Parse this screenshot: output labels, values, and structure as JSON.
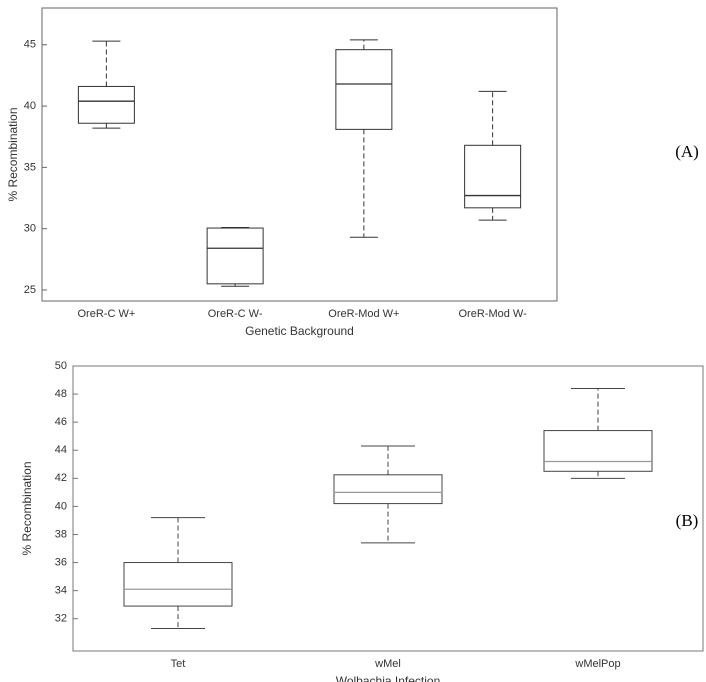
{
  "chart_data": [
    {
      "type": "box",
      "panel_label": "(A)",
      "xlabel": "Genetic Background",
      "ylabel": "% Recombination",
      "categories": [
        "OreR-C W+",
        "OreR-C W-",
        "OreR-Mod W+",
        "OreR-Mod W-"
      ],
      "min": [
        38.2,
        25.3,
        29.3,
        30.7
      ],
      "q1": [
        38.6,
        25.5,
        38.1,
        31.7
      ],
      "median": [
        40.4,
        28.4,
        41.8,
        32.7
      ],
      "q3": [
        41.6,
        30.05,
        44.6,
        36.8
      ],
      "max": [
        45.3,
        30.1,
        45.4,
        41.2
      ],
      "ylim": [
        24.1,
        48
      ],
      "yticks": [
        25,
        30,
        35,
        40,
        45
      ],
      "color": "#333333",
      "median_color": "#333333"
    },
    {
      "type": "box",
      "panel_label": "(B)",
      "xlabel": "Wolbachia Infection",
      "ylabel": "% Recombination",
      "categories": [
        "Tet",
        "wMel",
        "wMelPop"
      ],
      "min": [
        31.3,
        37.4,
        42.0
      ],
      "q1": [
        32.9,
        40.2,
        42.5
      ],
      "median": [
        34.1,
        41.0,
        43.2
      ],
      "q3": [
        36.0,
        42.25,
        45.4
      ],
      "max": [
        39.2,
        44.3,
        48.4
      ],
      "ylim": [
        29.7,
        50
      ],
      "yticks": [
        32,
        34,
        36,
        38,
        40,
        42,
        44,
        46,
        48,
        50
      ],
      "color": "#444444",
      "median_color": "#999999"
    }
  ]
}
